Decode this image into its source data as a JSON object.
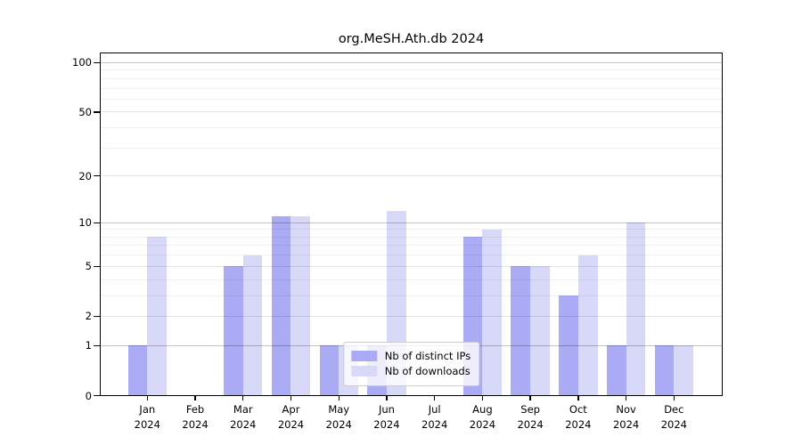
{
  "title": "org.MeSH.Ath.db 2024",
  "chart_data": {
    "type": "bar",
    "title": "org.MeSH.Ath.db 2024",
    "categories": [
      "Jan",
      "Feb",
      "Mar",
      "Apr",
      "May",
      "Jun",
      "Jul",
      "Aug",
      "Sep",
      "Oct",
      "Nov",
      "Dec"
    ],
    "year_label": "2024",
    "series": [
      {
        "name": "Nb of distinct IPs",
        "color": "#aaaaf5",
        "values": [
          1,
          0,
          5,
          11,
          1,
          1,
          0,
          8,
          5,
          3,
          1,
          1
        ]
      },
      {
        "name": "Nb of downloads",
        "color": "#d8d8f8",
        "values": [
          8,
          0,
          6,
          11,
          1,
          12,
          0,
          9,
          5,
          6,
          10,
          1
        ]
      }
    ],
    "y_axis": {
      "scale": "log(1+x)",
      "ticks": [
        0,
        1,
        2,
        5,
        10,
        20,
        50,
        100
      ],
      "minor_gridlines": [
        3,
        4,
        6,
        7,
        8,
        9,
        30,
        40,
        60,
        70,
        80,
        90
      ],
      "range": [
        0,
        100
      ]
    },
    "grid": true,
    "legend_position": "lower center",
    "colors": {
      "major_grid": "#c3c3c3",
      "mid_grid": "#e4e4e4",
      "minor_grid": "#f0f0f0",
      "axis": "#000000"
    }
  },
  "legend": {
    "items": [
      {
        "label": "Nb of distinct IPs"
      },
      {
        "label": "Nb of downloads"
      }
    ]
  }
}
